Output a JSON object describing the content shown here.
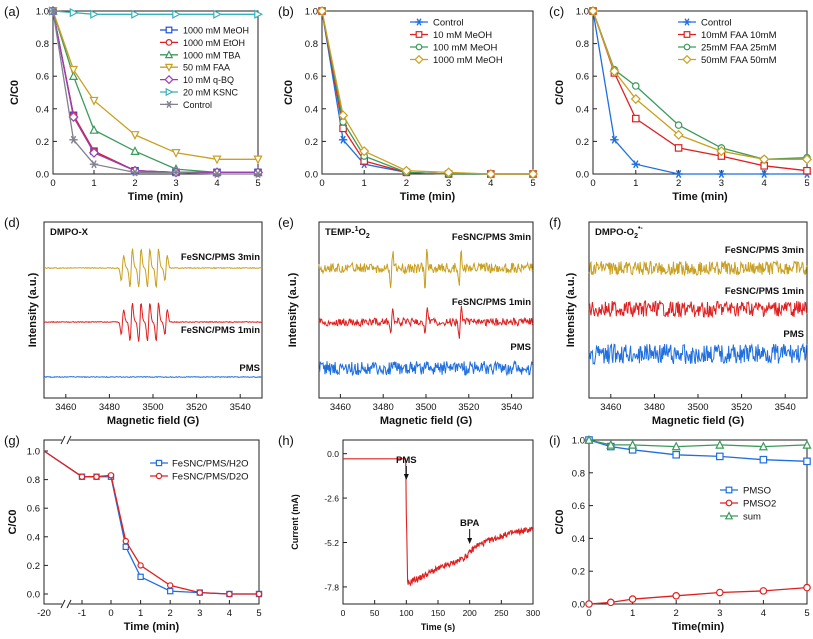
{
  "chart_data": [
    {
      "id": "a",
      "type": "line",
      "panel_label": "(a)",
      "xlabel": "Time (min)",
      "ylabel": "C/C0",
      "xlim": [
        0,
        5
      ],
      "ylim": [
        0,
        1.0
      ],
      "xticks": [
        "0",
        "1",
        "2",
        "3",
        "4",
        "5"
      ],
      "yticks": [
        "0.0",
        "0.2",
        "0.4",
        "0.6",
        "0.8",
        "1.0"
      ],
      "x": [
        0,
        0.5,
        1,
        2,
        3,
        4,
        5
      ],
      "legend_position": "top-right",
      "series": [
        {
          "name": "1000 mM MeOH",
          "color": "#1f4fd8",
          "marker": "square",
          "values": [
            1.0,
            0.36,
            0.14,
            0.02,
            0.01,
            0.01,
            0.01
          ]
        },
        {
          "name": "1000 mM EtOH",
          "color": "#e02020",
          "marker": "circle",
          "values": [
            1.0,
            0.36,
            0.14,
            0.02,
            0.01,
            0.01,
            0.01
          ]
        },
        {
          "name": "1000 mM TBA",
          "color": "#3a9a5a",
          "marker": "triangle-up",
          "values": [
            1.0,
            0.6,
            0.27,
            0.14,
            0.03,
            0.01,
            0.01
          ]
        },
        {
          "name": "50 mM FAA",
          "color": "#c9a020",
          "marker": "triangle-down",
          "values": [
            1.0,
            0.64,
            0.45,
            0.24,
            0.13,
            0.09,
            0.09
          ]
        },
        {
          "name": "10 mM q-BQ",
          "color": "#9a3fb3",
          "marker": "diamond",
          "values": [
            1.0,
            0.35,
            0.13,
            0.02,
            0.01,
            0.01,
            0.01
          ]
        },
        {
          "name": "20 mM KSNC",
          "color": "#3ab0b8",
          "marker": "triangle-right",
          "values": [
            1.0,
            0.99,
            0.98,
            0.98,
            0.98,
            0.98,
            0.98
          ]
        },
        {
          "name": "Control",
          "color": "#808090",
          "marker": "star",
          "values": [
            1.0,
            0.21,
            0.06,
            0.01,
            0.01,
            0.0,
            0.0
          ]
        }
      ]
    },
    {
      "id": "b",
      "type": "line",
      "panel_label": "(b)",
      "xlabel": "Time (min)",
      "ylabel": "C/C0",
      "xlim": [
        0,
        5
      ],
      "ylim": [
        0,
        1.0
      ],
      "xticks": [
        "0",
        "1",
        "2",
        "3",
        "4",
        "5"
      ],
      "yticks": [
        "0.0",
        "0.2",
        "0.4",
        "0.6",
        "0.8",
        "1.0"
      ],
      "x": [
        0,
        0.5,
        1,
        2,
        3,
        4,
        5
      ],
      "legend_position": "top-right",
      "series": [
        {
          "name": "Control",
          "color": "#1f6fe0",
          "marker": "star",
          "values": [
            1.0,
            0.21,
            0.06,
            0.01,
            0.0,
            0.0,
            0.0
          ]
        },
        {
          "name": "10 mM MeOH",
          "color": "#e02020",
          "marker": "square",
          "values": [
            1.0,
            0.28,
            0.08,
            0.01,
            0.0,
            0.0,
            0.0
          ]
        },
        {
          "name": "100 mM MeOH",
          "color": "#3a9a5a",
          "marker": "circle",
          "values": [
            1.0,
            0.32,
            0.11,
            0.01,
            0.0,
            0.0,
            0.0
          ]
        },
        {
          "name": "1000 mM MeOH",
          "color": "#c9a020",
          "marker": "diamond",
          "values": [
            1.0,
            0.36,
            0.14,
            0.02,
            0.01,
            0.0,
            0.0
          ]
        }
      ]
    },
    {
      "id": "c",
      "type": "line",
      "panel_label": "(c)",
      "xlabel": "Time (min)",
      "ylabel": "C/C0",
      "xlim": [
        0,
        5
      ],
      "ylim": [
        0,
        1.0
      ],
      "xticks": [
        "0",
        "1",
        "2",
        "3",
        "4",
        "5"
      ],
      "yticks": [
        "0.0",
        "0.2",
        "0.4",
        "0.6",
        "0.8",
        "1.0"
      ],
      "x": [
        0,
        0.5,
        1,
        2,
        3,
        4,
        5
      ],
      "legend_position": "top-right",
      "series": [
        {
          "name": "Control",
          "color": "#1f6fe0",
          "marker": "star",
          "values": [
            1.0,
            0.21,
            0.06,
            0.0,
            0.0,
            0.0,
            0.0
          ]
        },
        {
          "name": "10mM FAA 10mM",
          "color": "#e02020",
          "marker": "square",
          "values": [
            1.0,
            0.62,
            0.34,
            0.16,
            0.11,
            0.05,
            0.02
          ]
        },
        {
          "name": "25mM FAA 25mM",
          "color": "#3a9a5a",
          "marker": "circle",
          "values": [
            1.0,
            0.64,
            0.54,
            0.3,
            0.16,
            0.09,
            0.1
          ]
        },
        {
          "name": "50mM FAA 50mM",
          "color": "#c9a020",
          "marker": "diamond",
          "values": [
            1.0,
            0.63,
            0.46,
            0.24,
            0.14,
            0.09,
            0.09
          ]
        }
      ]
    },
    {
      "id": "d",
      "type": "line",
      "panel_label": "(d)",
      "title": "DMPO-X",
      "xlabel": "Magnetic field (G)",
      "ylabel": "Intensity (a.u.)",
      "xlim": [
        3450,
        3550
      ],
      "xticks": [
        "3460",
        "3480",
        "3500",
        "3520",
        "3540"
      ],
      "spectrum_kind": "dmpo",
      "series": [
        {
          "name": "FeSNC/PMS 3min",
          "color": "#c9a020",
          "peaks": [
            3486,
            3490,
            3494,
            3498,
            3502,
            3506
          ]
        },
        {
          "name": "FeSNC/PMS 1min",
          "color": "#e02020",
          "peaks": [
            3486,
            3490,
            3494,
            3498,
            3502,
            3506
          ]
        },
        {
          "name": "PMS",
          "color": "#1f6fe0",
          "peaks": []
        }
      ]
    },
    {
      "id": "e",
      "type": "line",
      "panel_label": "(e)",
      "title": "TEMP-",
      "title_sup": "1",
      "title_tail": "O",
      "title_sub": "2",
      "xlabel": "Magnetic field (G)",
      "ylabel": "Intensity (a.u.)",
      "xlim": [
        3450,
        3550
      ],
      "xticks": [
        "3460",
        "3480",
        "3500",
        "3520",
        "3540"
      ],
      "spectrum_kind": "temp",
      "series": [
        {
          "name": "FeSNC/PMS 3min",
          "color": "#c9a020",
          "peaks": [
            3484,
            3500,
            3516
          ]
        },
        {
          "name": "FeSNC/PMS 1min",
          "color": "#e02020",
          "peaks": [
            3484,
            3500,
            3516
          ]
        },
        {
          "name": "PMS",
          "color": "#1f6fe0",
          "peaks": []
        }
      ]
    },
    {
      "id": "f",
      "type": "line",
      "panel_label": "(f)",
      "title": "DMPO-O",
      "title_sub": "2",
      "title_sup": "•-",
      "xlabel": "Magnetic field (G)",
      "ylabel": "Intensity (a.u.)",
      "xlim": [
        3450,
        3550
      ],
      "xticks": [
        "3460",
        "3480",
        "3500",
        "3520",
        "3540"
      ],
      "spectrum_kind": "noise",
      "series": [
        {
          "name": "FeSNC/PMS 3min",
          "color": "#c9a020",
          "peaks": []
        },
        {
          "name": "FeSNC/PMS 1min",
          "color": "#e02020",
          "peaks": []
        },
        {
          "name": "PMS",
          "color": "#1f6fe0",
          "peaks": []
        }
      ]
    },
    {
      "id": "g",
      "type": "line",
      "panel_label": "(g)",
      "xlabel": "Time (min)",
      "ylabel": "C/C0",
      "ylim": [
        0,
        1.0
      ],
      "xticks": [
        "-20",
        "-1",
        "0",
        "1",
        "2",
        "3",
        "4",
        "5"
      ],
      "yticks": [
        "0.0",
        "0.2",
        "0.4",
        "0.6",
        "0.8",
        "1.0"
      ],
      "axis_break": "between -20 and -1",
      "legend_position": "top-right",
      "series": [
        {
          "name": "FeSNC/PMS/H2O",
          "color": "#1f6fe0",
          "marker": "square",
          "x": [
            -20,
            -1,
            -0.5,
            0,
            0.5,
            1,
            2,
            3,
            4,
            5
          ],
          "values": [
            1.0,
            0.82,
            0.82,
            0.82,
            0.33,
            0.12,
            0.02,
            0.01,
            0.0,
            0.0
          ]
        },
        {
          "name": "FeSNC/PMS/D2O",
          "color": "#e02020",
          "marker": "circle",
          "x": [
            -20,
            -1,
            -0.5,
            0,
            0.5,
            1,
            2,
            3,
            4,
            5
          ],
          "values": [
            1.0,
            0.82,
            0.82,
            0.83,
            0.37,
            0.2,
            0.06,
            0.01,
            0.0,
            0.0
          ]
        }
      ]
    },
    {
      "id": "h",
      "type": "line",
      "panel_label": "(h)",
      "xlabel": "Time (s)",
      "ylabel": "Current (mA)",
      "xlim": [
        0,
        300
      ],
      "ylim": [
        -8.8,
        0.8
      ],
      "xticks": [
        "0",
        "50",
        "100",
        "150",
        "200",
        "250",
        "300"
      ],
      "yticks": [
        "0.0",
        "-2.6",
        "-5.2",
        "-7.8"
      ],
      "annotations": [
        "PMS",
        "BPA"
      ],
      "series": [
        {
          "name": "Current",
          "color": "#e02020",
          "x": [
            0,
            99,
            100,
            102,
            105,
            110,
            120,
            140,
            160,
            180,
            195,
            200,
            210,
            230,
            260,
            300
          ],
          "values": [
            -0.3,
            -0.3,
            -3.5,
            -7.6,
            -7.6,
            -7.4,
            -7.3,
            -6.9,
            -6.6,
            -6.3,
            -6.0,
            -5.8,
            -5.4,
            -5.1,
            -4.7,
            -4.4
          ]
        }
      ]
    },
    {
      "id": "i",
      "type": "line",
      "panel_label": "(i)",
      "xlabel": "Time(min)",
      "ylabel": "C/C0",
      "xlim": [
        0,
        5
      ],
      "ylim": [
        0,
        1.0
      ],
      "xticks": [
        "0",
        "1",
        "2",
        "3",
        "4",
        "5"
      ],
      "yticks": [
        "0.0",
        "0.2",
        "0.4",
        "0.6",
        "0.8",
        "1.0"
      ],
      "x": [
        0,
        0.5,
        1,
        2,
        3,
        4,
        5
      ],
      "legend_position": "center-right",
      "series": [
        {
          "name": "PMSO",
          "color": "#1f6fe0",
          "marker": "square",
          "values": [
            1.0,
            0.96,
            0.94,
            0.91,
            0.9,
            0.88,
            0.87
          ]
        },
        {
          "name": "PMSO2",
          "color": "#e02020",
          "marker": "circle",
          "values": [
            0.0,
            0.01,
            0.03,
            0.05,
            0.07,
            0.08,
            0.1
          ]
        },
        {
          "name": "sum",
          "color": "#3a9a5a",
          "marker": "triangle-up",
          "values": [
            1.0,
            0.97,
            0.97,
            0.96,
            0.97,
            0.96,
            0.97
          ]
        }
      ]
    }
  ]
}
